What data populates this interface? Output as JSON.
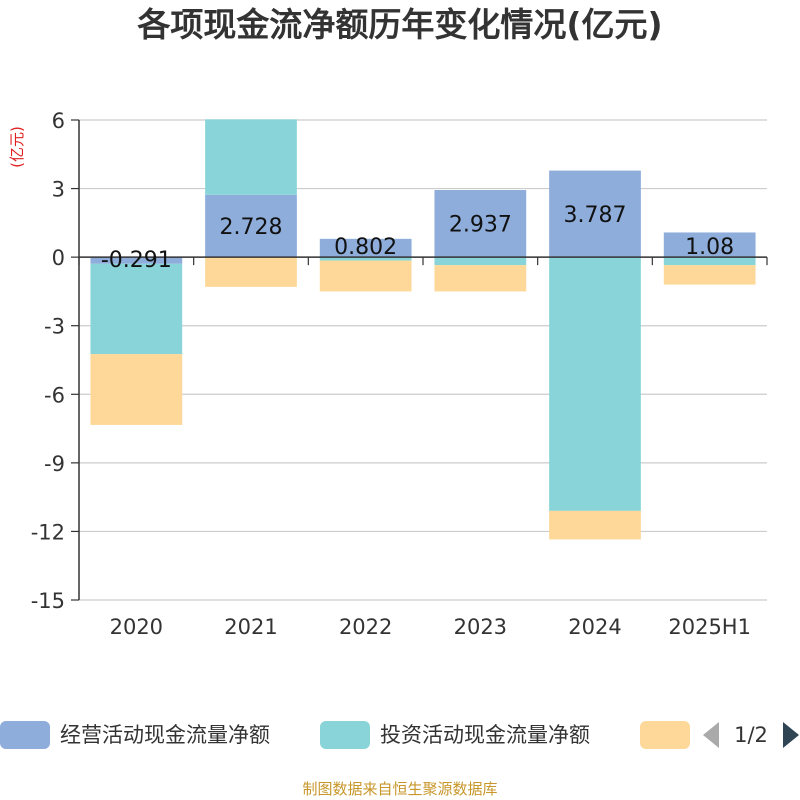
{
  "chart_data": {
    "type": "bar",
    "stacked": true,
    "title": "各项现金流净额历年变化情况(亿元)",
    "ylabel": "(亿元)",
    "categories": [
      "2020",
      "2021",
      "2022",
      "2023",
      "2024",
      "2025H1"
    ],
    "ylim": [
      -15,
      6
    ],
    "yticks": [
      6,
      3,
      0,
      -3,
      -6,
      -9,
      -12,
      -15
    ],
    "grid": true,
    "legend_position": "bottom",
    "series": [
      {
        "name": "经营活动现金流量净额",
        "color": "#8eaddb",
        "values": [
          -0.291,
          2.728,
          0.802,
          2.937,
          3.787,
          1.08
        ]
      },
      {
        "name": "投资活动现金流量净额",
        "color": "#88d4d8",
        "values": [
          -3.95,
          3.3,
          -0.15,
          -0.35,
          -11.1,
          -0.35
        ]
      },
      {
        "name": "",
        "color": "#fdd898",
        "values": [
          -3.1,
          -1.3,
          -1.35,
          -1.15,
          -1.25,
          -0.85
        ]
      }
    ],
    "data_labels": [
      "-0.291",
      "2.728",
      "0.802",
      "2.937",
      "3.787",
      "1.08"
    ]
  },
  "legend": {
    "page_indicator": "1/2"
  },
  "source_note": "制图数据来自恒生聚源数据库"
}
